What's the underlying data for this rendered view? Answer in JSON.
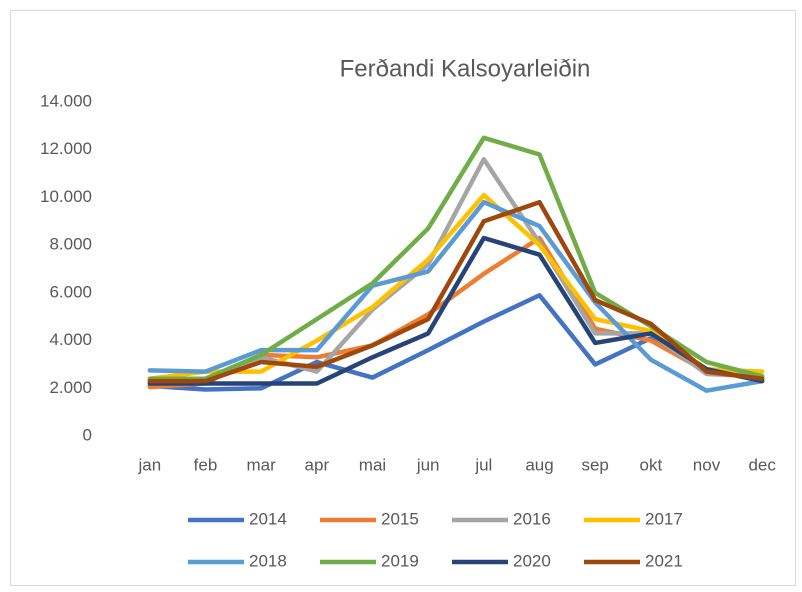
{
  "chart_data": {
    "type": "line",
    "title": "Ferðandi Kalsoyarleiðin",
    "categories": [
      "jan",
      "feb",
      "mar",
      "apr",
      "mai",
      "jun",
      "jul",
      "aug",
      "sep",
      "okt",
      "nov",
      "dec"
    ],
    "series": [
      {
        "name": "2014",
        "color": "#4472c4",
        "values": [
          2100,
          1950,
          2000,
          3100,
          2450,
          3600,
          4800,
          5900,
          3000,
          4100,
          2800,
          2400
        ]
      },
      {
        "name": "2015",
        "color": "#ed7d31",
        "values": [
          2050,
          2200,
          3400,
          3300,
          3800,
          5100,
          6800,
          8300,
          4500,
          4000,
          2700,
          2500
        ]
      },
      {
        "name": "2016",
        "color": "#a5a5a5",
        "values": [
          2200,
          2300,
          3300,
          2700,
          5300,
          7200,
          11600,
          8100,
          4300,
          4300,
          2600,
          2500
        ]
      },
      {
        "name": "2017",
        "color": "#ffc000",
        "values": [
          2400,
          2700,
          2700,
          4000,
          5400,
          7400,
          10100,
          8000,
          4900,
          4400,
          2800,
          2700
        ]
      },
      {
        "name": "2018",
        "color": "#5b9bd5",
        "values": [
          2750,
          2700,
          3600,
          3600,
          6300,
          6900,
          9800,
          8800,
          5600,
          3200,
          1900,
          2300
        ]
      },
      {
        "name": "2019",
        "color": "#70ad47",
        "values": [
          2400,
          2400,
          3400,
          4900,
          6400,
          8700,
          12500,
          11800,
          6000,
          4600,
          3100,
          2500
        ]
      },
      {
        "name": "2020",
        "color": "#264478",
        "values": [
          2200,
          2200,
          2200,
          2200,
          3300,
          4300,
          8300,
          7600,
          3900,
          4300,
          2800,
          2300
        ]
      },
      {
        "name": "2021",
        "color": "#9e480e",
        "values": [
          2300,
          2300,
          3100,
          2900,
          3800,
          4900,
          9000,
          9800,
          5700,
          4700,
          2700,
          2400
        ]
      }
    ],
    "ylim": [
      0,
      14000
    ],
    "yticks": [
      0,
      {
        "value": 2000,
        "label": "2.000"
      },
      {
        "value": 4000,
        "label": "4.000"
      },
      {
        "value": 6000,
        "label": "6.000"
      },
      {
        "value": 8000,
        "label": "8.000"
      },
      {
        "value": 10000,
        "label": "10.000"
      },
      {
        "value": 12000,
        "label": "12.000"
      },
      {
        "value": 14000,
        "label": "14.000"
      }
    ],
    "grid": false,
    "legend": "bottom"
  }
}
